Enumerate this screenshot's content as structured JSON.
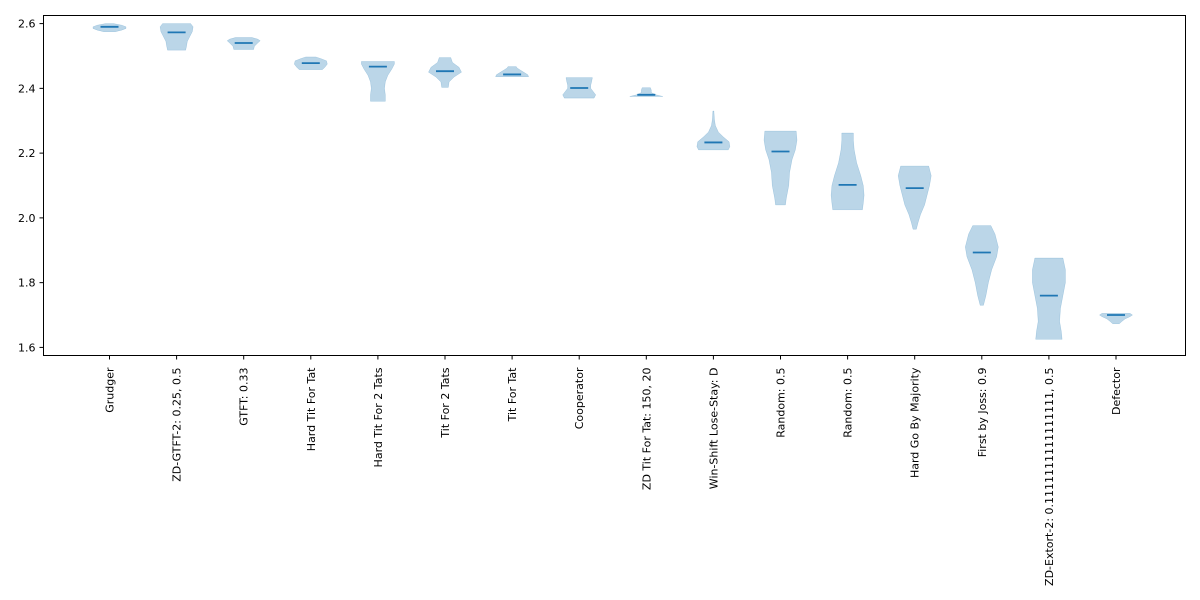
{
  "chart_data": {
    "type": "violin",
    "title": "",
    "xlabel": "",
    "ylabel": "",
    "ylim": [
      1.575,
      2.625
    ],
    "yticks": [
      1.6,
      1.8,
      2.0,
      2.2,
      2.4,
      2.6
    ],
    "grid": false,
    "colors": {
      "body": "#1f77b4",
      "body_alpha": 0.3,
      "median": "#1f77b4"
    },
    "categories": [
      "Grudger",
      "ZD-GTFT-2: 0.25, 0.5",
      "GTFT: 0.33",
      "Hard Tit For Tat",
      "Hard Tit For 2 Tats",
      "Tit For 2 Tats",
      "Tit For Tat",
      "Cooperator",
      "ZD Tit For Tat: 150, 20",
      "Win-Shift Lose-Stay: D",
      "Random: 0.5",
      "Random: 0.5",
      "Hard Go By Majority",
      "First by Joss: 0.9",
      "ZD-Extort-2: 0.1111111111111111, 0.5",
      "Defector"
    ],
    "series": [
      {
        "median": 2.59,
        "min": 2.575,
        "max": 2.6,
        "profile": [
          [
            2.575,
            0.35
          ],
          [
            2.58,
            0.75
          ],
          [
            2.585,
            1.0
          ],
          [
            2.59,
            1.0
          ],
          [
            2.595,
            0.75
          ],
          [
            2.6,
            0.25
          ]
        ]
      },
      {
        "median": 2.573,
        "min": 2.518,
        "max": 2.6,
        "profile": [
          [
            2.518,
            0.55
          ],
          [
            2.53,
            0.6
          ],
          [
            2.545,
            0.65
          ],
          [
            2.56,
            0.8
          ],
          [
            2.575,
            0.95
          ],
          [
            2.59,
            1.0
          ],
          [
            2.6,
            0.85
          ]
        ]
      },
      {
        "median": 2.54,
        "min": 2.52,
        "max": 2.557,
        "profile": [
          [
            2.52,
            0.6
          ],
          [
            2.53,
            0.65
          ],
          [
            2.54,
            0.85
          ],
          [
            2.547,
            1.0
          ],
          [
            2.552,
            0.85
          ],
          [
            2.557,
            0.5
          ]
        ]
      },
      {
        "median": 2.478,
        "min": 2.458,
        "max": 2.497,
        "profile": [
          [
            2.458,
            0.7
          ],
          [
            2.465,
            0.85
          ],
          [
            2.475,
            1.0
          ],
          [
            2.485,
            0.95
          ],
          [
            2.492,
            0.6
          ],
          [
            2.497,
            0.3
          ]
        ]
      },
      {
        "median": 2.467,
        "min": 2.36,
        "max": 2.483,
        "profile": [
          [
            2.36,
            0.45
          ],
          [
            2.38,
            0.45
          ],
          [
            2.4,
            0.4
          ],
          [
            2.42,
            0.45
          ],
          [
            2.44,
            0.6
          ],
          [
            2.46,
            0.85
          ],
          [
            2.475,
            1.0
          ],
          [
            2.483,
            1.0
          ]
        ]
      },
      {
        "median": 2.453,
        "min": 2.403,
        "max": 2.495,
        "profile": [
          [
            2.403,
            0.2
          ],
          [
            2.42,
            0.25
          ],
          [
            2.435,
            0.55
          ],
          [
            2.45,
            1.0
          ],
          [
            2.465,
            0.85
          ],
          [
            2.48,
            0.45
          ],
          [
            2.495,
            0.35
          ]
        ]
      },
      {
        "median": 2.443,
        "min": 2.436,
        "max": 2.467,
        "profile": [
          [
            2.436,
            1.0
          ],
          [
            2.442,
            0.95
          ],
          [
            2.45,
            0.7
          ],
          [
            2.458,
            0.45
          ],
          [
            2.463,
            0.3
          ],
          [
            2.467,
            0.25
          ]
        ]
      },
      {
        "median": 2.401,
        "min": 2.37,
        "max": 2.433,
        "profile": [
          [
            2.37,
            0.9
          ],
          [
            2.38,
            1.0
          ],
          [
            2.39,
            0.85
          ],
          [
            2.4,
            0.7
          ],
          [
            2.41,
            0.7
          ],
          [
            2.42,
            0.75
          ],
          [
            2.433,
            0.8
          ]
        ]
      },
      {
        "median": 2.38,
        "min": 2.375,
        "max": 2.402,
        "profile": [
          [
            2.375,
            1.0
          ],
          [
            2.38,
            0.6
          ],
          [
            2.387,
            0.3
          ],
          [
            2.395,
            0.3
          ],
          [
            2.402,
            0.25
          ]
        ]
      },
      {
        "median": 2.233,
        "min": 2.21,
        "max": 2.33,
        "profile": [
          [
            2.21,
            0.9
          ],
          [
            2.22,
            1.0
          ],
          [
            2.235,
            0.95
          ],
          [
            2.25,
            0.6
          ],
          [
            2.265,
            0.3
          ],
          [
            2.285,
            0.12
          ],
          [
            2.305,
            0.06
          ],
          [
            2.33,
            0.03
          ]
        ]
      },
      {
        "median": 2.205,
        "min": 2.04,
        "max": 2.268,
        "profile": [
          [
            2.04,
            0.3
          ],
          [
            2.06,
            0.35
          ],
          [
            2.1,
            0.5
          ],
          [
            2.14,
            0.55
          ],
          [
            2.18,
            0.7
          ],
          [
            2.21,
            0.9
          ],
          [
            2.24,
            1.0
          ],
          [
            2.268,
            0.95
          ]
        ]
      },
      {
        "median": 2.102,
        "min": 2.025,
        "max": 2.262,
        "profile": [
          [
            2.025,
            0.9
          ],
          [
            2.045,
            0.95
          ],
          [
            2.07,
            1.0
          ],
          [
            2.1,
            0.95
          ],
          [
            2.13,
            0.8
          ],
          [
            2.17,
            0.55
          ],
          [
            2.21,
            0.4
          ],
          [
            2.24,
            0.35
          ],
          [
            2.262,
            0.35
          ]
        ]
      },
      {
        "median": 2.092,
        "min": 1.965,
        "max": 2.16,
        "profile": [
          [
            1.965,
            0.1
          ],
          [
            1.985,
            0.2
          ],
          [
            2.01,
            0.35
          ],
          [
            2.04,
            0.6
          ],
          [
            2.07,
            0.75
          ],
          [
            2.1,
            0.9
          ],
          [
            2.13,
            1.0
          ],
          [
            2.16,
            0.85
          ]
        ]
      },
      {
        "median": 1.893,
        "min": 1.73,
        "max": 1.976,
        "profile": [
          [
            1.73,
            0.1
          ],
          [
            1.76,
            0.25
          ],
          [
            1.8,
            0.4
          ],
          [
            1.84,
            0.6
          ],
          [
            1.88,
            0.9
          ],
          [
            1.91,
            1.0
          ],
          [
            1.95,
            0.8
          ],
          [
            1.976,
            0.55
          ]
        ]
      },
      {
        "median": 1.76,
        "min": 1.625,
        "max": 1.876,
        "profile": [
          [
            1.625,
            0.8
          ],
          [
            1.65,
            0.75
          ],
          [
            1.68,
            0.65
          ],
          [
            1.72,
            0.7
          ],
          [
            1.76,
            0.85
          ],
          [
            1.8,
            1.0
          ],
          [
            1.84,
            1.0
          ],
          [
            1.876,
            0.85
          ]
        ]
      },
      {
        "median": 1.7,
        "min": 1.673,
        "max": 1.705,
        "profile": [
          [
            1.673,
            0.2
          ],
          [
            1.68,
            0.35
          ],
          [
            1.688,
            0.55
          ],
          [
            1.695,
            0.85
          ],
          [
            1.7,
            1.0
          ],
          [
            1.705,
            0.85
          ]
        ]
      }
    ]
  }
}
